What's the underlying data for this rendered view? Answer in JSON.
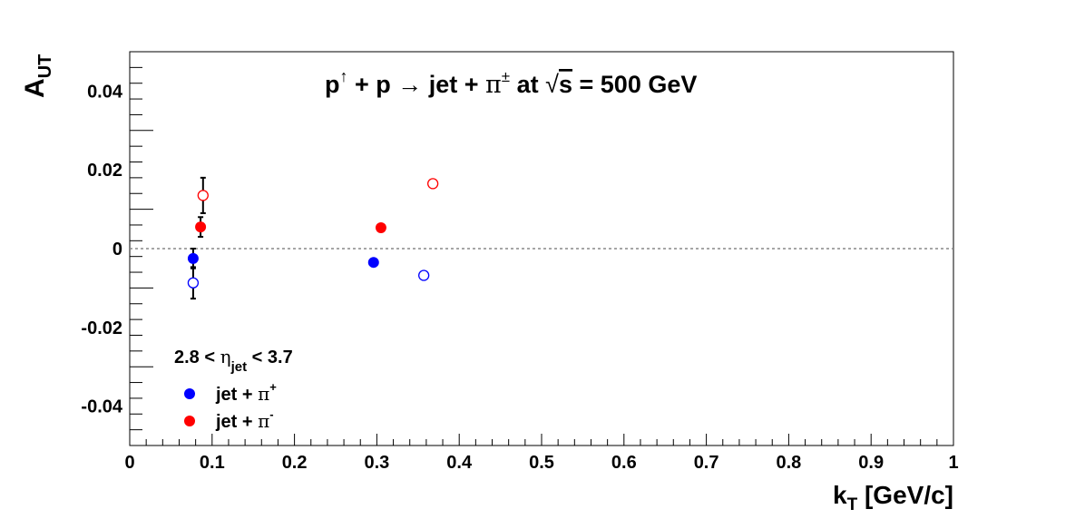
{
  "chart_data": {
    "type": "scatter",
    "title": {
      "p": "p",
      "up_arrow": "↑",
      "rest1": " + p ",
      "arrow": "→",
      "rest2": " jet + ",
      "pi": "π",
      "pm": "±",
      "at": " at ",
      "sqrt_sym": "√",
      "s": "s",
      "tail": " = 500 GeV"
    },
    "xlabel": {
      "main": "k",
      "sub": "T",
      "rest": " [GeV/c]"
    },
    "ylabel": {
      "main": "A",
      "sub": "UT"
    },
    "xlim": [
      0,
      1
    ],
    "ylim": [
      -0.05,
      0.05
    ],
    "x_ticks": [
      "0",
      "0.1",
      "0.2",
      "0.3",
      "0.4",
      "0.5",
      "0.6",
      "0.7",
      "0.8",
      "0.9",
      "1"
    ],
    "x_tick_values": [
      0,
      0.1,
      0.2,
      0.3,
      0.4,
      0.5,
      0.6,
      0.7,
      0.8,
      0.9,
      1
    ],
    "y_ticks": [
      "-0.04",
      "-0.02",
      "0",
      "0.02",
      "0.04"
    ],
    "y_tick_values": [
      -0.04,
      -0.02,
      0,
      0.02,
      0.04
    ],
    "zero_line": true,
    "grid": false,
    "legend": {
      "placement": "bottom-left",
      "header": {
        "pre": "2.8 < ",
        "eta": "η",
        "sub": "jet",
        "post": " < 3.7"
      },
      "entries": [
        {
          "text": "jet + ",
          "pi": "π",
          "charge": "+",
          "color": "#0000ff"
        },
        {
          "text": "jet + ",
          "pi": "π",
          "charge": "-",
          "color": "#ff0000"
        }
      ]
    },
    "series": [
      {
        "name": "jet + π+",
        "color": "#0000ff",
        "filled": true,
        "points": [
          {
            "x": 0.077,
            "y": -0.0025,
            "err": 0.0025
          },
          {
            "x": 0.296,
            "y": -0.0035,
            "err": 0
          }
        ]
      },
      {
        "name": "jet + π-",
        "color": "#ff0000",
        "filled": true,
        "points": [
          {
            "x": 0.086,
            "y": 0.0055,
            "err": 0.0025
          },
          {
            "x": 0.305,
            "y": 0.0053,
            "err": 0
          }
        ]
      },
      {
        "color": "#0000ff",
        "filled": false,
        "points": [
          {
            "x": 0.077,
            "y": -0.0087,
            "err": 0.004
          },
          {
            "x": 0.357,
            "y": -0.0068,
            "err": 0
          }
        ]
      },
      {
        "color": "#ff0000",
        "filled": false,
        "points": [
          {
            "x": 0.089,
            "y": 0.0135,
            "err": 0.0045
          },
          {
            "x": 0.368,
            "y": 0.0165,
            "err": 0
          }
        ]
      }
    ]
  }
}
